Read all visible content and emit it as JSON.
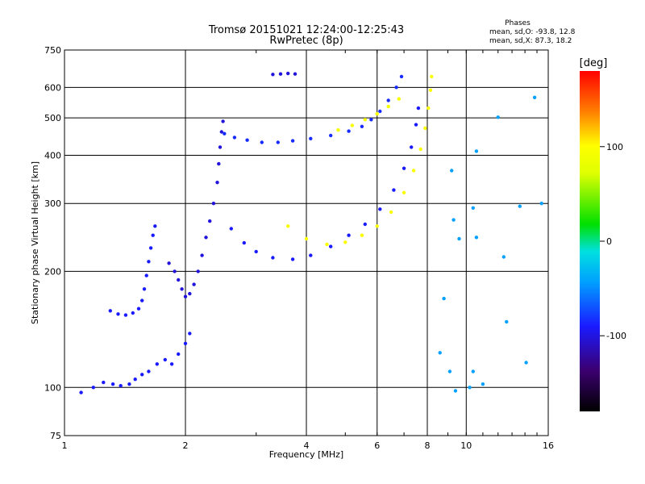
{
  "chart_data": {
    "type": "scatter",
    "title": "Tromsø 20151021 12:24:00-12:25:43",
    "subtitle": "RwPretec (8p)",
    "xlabel": "Frequency [MHz]",
    "ylabel": "Stationary phase Virtual Height [km]",
    "x_scale": "log",
    "y_scale": "log",
    "xlim": [
      1,
      16
    ],
    "ylim": [
      75,
      750
    ],
    "x_ticks": [
      1,
      2,
      4,
      6,
      8,
      10,
      16
    ],
    "y_ticks": [
      75,
      100,
      200,
      300,
      400,
      500,
      600,
      750
    ],
    "grid": true,
    "phase_box": {
      "title": "Phases",
      "line_o": "mean, sd,O: -93.8, 12.8",
      "line_x": "mean, sd,X:  87.3, 18.2"
    },
    "colorbar": {
      "label": "[deg]",
      "range": [
        -180,
        180
      ],
      "ticks": [
        100,
        0,
        -100
      ]
    },
    "series": [
      {
        "trace": "e-region-low",
        "color_deg": -100,
        "points": [
          [
            1.1,
            97
          ],
          [
            1.18,
            100
          ],
          [
            1.25,
            103
          ],
          [
            1.32,
            102
          ],
          [
            1.38,
            101
          ],
          [
            1.45,
            102
          ],
          [
            1.5,
            105
          ],
          [
            1.56,
            108
          ],
          [
            1.62,
            110
          ],
          [
            1.7,
            115
          ],
          [
            1.78,
            118
          ],
          [
            1.85,
            115
          ],
          [
            1.92,
            122
          ],
          [
            2.0,
            130
          ],
          [
            2.05,
            138
          ]
        ]
      },
      {
        "trace": "e-region-upper",
        "color_deg": -100,
        "points": [
          [
            1.3,
            158
          ],
          [
            1.36,
            155
          ],
          [
            1.42,
            154
          ],
          [
            1.48,
            156
          ],
          [
            1.53,
            160
          ],
          [
            1.56,
            168
          ],
          [
            1.58,
            180
          ],
          [
            1.6,
            195
          ],
          [
            1.62,
            212
          ],
          [
            1.64,
            230
          ],
          [
            1.66,
            248
          ],
          [
            1.68,
            262
          ]
        ]
      },
      {
        "trace": "f1-cusp",
        "color_deg": -110,
        "points": [
          [
            1.82,
            210
          ],
          [
            1.88,
            200
          ],
          [
            1.92,
            190
          ],
          [
            1.96,
            180
          ],
          [
            2.0,
            172
          ],
          [
            2.05,
            175
          ],
          [
            2.1,
            185
          ],
          [
            2.15,
            200
          ],
          [
            2.2,
            220
          ],
          [
            2.25,
            245
          ],
          [
            2.3,
            270
          ],
          [
            2.35,
            300
          ],
          [
            2.4,
            340
          ],
          [
            2.42,
            380
          ],
          [
            2.44,
            420
          ],
          [
            2.46,
            460
          ],
          [
            2.48,
            490
          ]
        ]
      },
      {
        "trace": "f2-o-trace",
        "color_deg": -95,
        "points": [
          [
            2.5,
            455
          ],
          [
            2.65,
            445
          ],
          [
            2.85,
            438
          ],
          [
            3.1,
            432
          ],
          [
            3.4,
            432
          ],
          [
            3.7,
            436
          ],
          [
            4.1,
            442
          ],
          [
            4.6,
            450
          ],
          [
            5.1,
            462
          ],
          [
            5.5,
            475
          ],
          [
            5.8,
            495
          ],
          [
            6.1,
            520
          ],
          [
            6.4,
            555
          ],
          [
            6.7,
            600
          ],
          [
            6.9,
            640
          ]
        ]
      },
      {
        "trace": "f2-x-trace",
        "color_deg": 95,
        "points": [
          [
            3.6,
            262
          ],
          [
            4.0,
            243
          ],
          [
            4.5,
            235
          ],
          [
            5.0,
            238
          ],
          [
            5.5,
            248
          ],
          [
            6.0,
            262
          ],
          [
            6.5,
            285
          ],
          [
            7.0,
            320
          ],
          [
            7.4,
            365
          ],
          [
            7.7,
            415
          ],
          [
            7.9,
            470
          ],
          [
            8.05,
            530
          ],
          [
            8.15,
            590
          ],
          [
            8.2,
            640
          ]
        ]
      },
      {
        "trace": "f1-lower-trace",
        "color_deg": -100,
        "points": [
          [
            2.6,
            258
          ],
          [
            2.8,
            237
          ],
          [
            3.0,
            225
          ],
          [
            3.3,
            217
          ],
          [
            3.7,
            215
          ],
          [
            4.1,
            220
          ],
          [
            4.6,
            232
          ],
          [
            5.1,
            248
          ],
          [
            5.6,
            265
          ],
          [
            6.1,
            290
          ],
          [
            6.6,
            325
          ],
          [
            7.0,
            370
          ],
          [
            7.3,
            420
          ],
          [
            7.5,
            480
          ],
          [
            7.6,
            530
          ]
        ]
      },
      {
        "trace": "f2-upper-x",
        "color_deg": 90,
        "points": [
          [
            4.8,
            465
          ],
          [
            5.2,
            478
          ],
          [
            5.6,
            495
          ],
          [
            6.0,
            512
          ],
          [
            6.4,
            535
          ],
          [
            6.8,
            560
          ]
        ]
      },
      {
        "trace": "top-patch",
        "color_deg": -110,
        "points": [
          [
            3.3,
            648
          ],
          [
            3.45,
            650
          ],
          [
            3.6,
            652
          ],
          [
            3.75,
            650
          ]
        ]
      },
      {
        "trace": "scattered",
        "color_deg": -60,
        "points": [
          [
            9.2,
            365
          ],
          [
            9.3,
            272
          ],
          [
            9.6,
            243
          ],
          [
            10.4,
            292
          ],
          [
            10.6,
            410
          ],
          [
            10.6,
            245
          ],
          [
            12.0,
            502
          ],
          [
            12.4,
            218
          ],
          [
            12.6,
            148
          ],
          [
            13.6,
            295
          ],
          [
            14.8,
            565
          ],
          [
            15.4,
            300
          ],
          [
            10.2,
            100
          ],
          [
            9.4,
            98
          ],
          [
            9.1,
            110
          ],
          [
            10.4,
            110
          ],
          [
            11.0,
            102
          ],
          [
            8.8,
            170
          ],
          [
            8.6,
            123
          ],
          [
            14.1,
            116
          ]
        ]
      }
    ]
  }
}
